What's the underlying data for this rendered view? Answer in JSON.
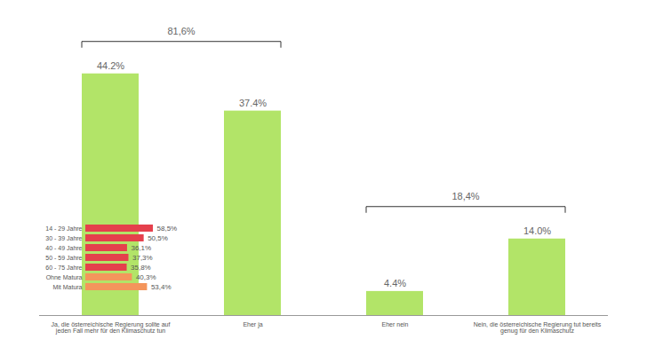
{
  "chart_data": [
    {
      "type": "bar",
      "categories": [
        "Ja, die österreichische Regierung sollte auf jeden Fall mehr für den Klimaschutz tun",
        "Eher ja",
        "Eher nein",
        "Nein, die österreichische Regierung tut bereits genug für den Klimaschutz"
      ],
      "values": [
        44.2,
        37.4,
        4.4,
        14.0
      ],
      "value_labels": [
        "44.2%",
        "37.4%",
        "4.4%",
        "14.0%"
      ],
      "color": "#b2e468",
      "data_labels": true,
      "tick_labels": "x",
      "ylim": [
        0,
        50
      ],
      "groups": [
        {
          "categories": [
            "Ja, die österreichische Regierung sollte auf jeden Fall mehr für den Klimaschutz tun",
            "Eher ja"
          ],
          "value": 81.6,
          "label": "81,6%"
        },
        {
          "categories": [
            "Eher nein",
            "Nein, die österreichische Regierung tut bereits genug für den Klimaschutz"
          ],
          "value": 18.4,
          "label": "18,4%"
        }
      ]
    },
    {
      "type": "bar",
      "orientation": "horizontal",
      "categories": [
        "14 - 29 Jahre",
        "30 - 39 Jahre",
        "40 - 49 Jahre",
        "50 - 59 Jahre",
        "60 - 75 Jahre",
        "Ohne Matura",
        "Mit Matura"
      ],
      "values": [
        58.5,
        50.5,
        36.1,
        37.3,
        35.8,
        40.3,
        53.4
      ],
      "value_labels": [
        "58,5%",
        "50,5%",
        "36,1%",
        "37,3%",
        "35,8%",
        "40,3%",
        "53,4%"
      ],
      "colors": [
        "#e5404c",
        "#e5404c",
        "#e5404c",
        "#e5404c",
        "#e5404c",
        "#f4955c",
        "#f4955c"
      ],
      "data_labels": true,
      "tick_labels": "y",
      "xlim": [
        0,
        100
      ]
    }
  ]
}
